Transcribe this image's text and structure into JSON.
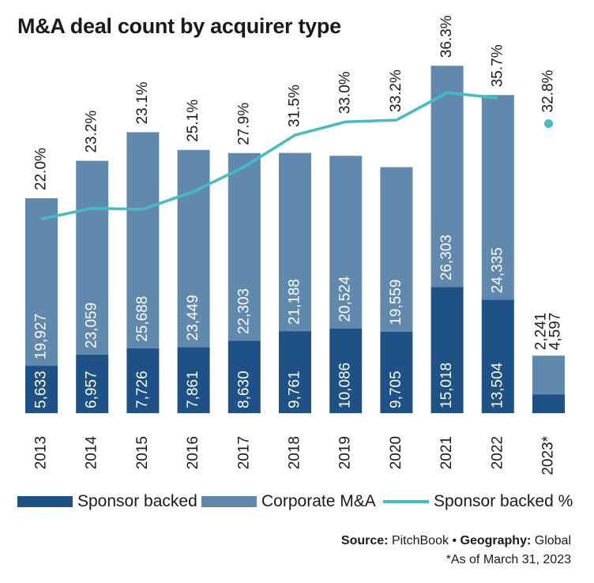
{
  "title": "M&A deal count by acquirer type",
  "chart_data": {
    "type": "bar",
    "stacked": true,
    "categories": [
      "2013",
      "2014",
      "2015",
      "2016",
      "2017",
      "2018",
      "2019",
      "2020",
      "2021",
      "2022",
      "2023*"
    ],
    "series": [
      {
        "name": "Sponsor backed",
        "color": "#1e5186",
        "values": [
          5633,
          6957,
          7726,
          7861,
          8630,
          9761,
          10086,
          9705,
          15018,
          13504,
          2241
        ],
        "labels": [
          "5,633",
          "6,957",
          "7,726",
          "7,861",
          "8,630",
          "9,761",
          "10,086",
          "9,705",
          "15,018",
          "13,504",
          "2,241"
        ]
      },
      {
        "name": "Corporate M&A",
        "color": "#6189ae",
        "values": [
          19927,
          23059,
          25688,
          23449,
          22303,
          21188,
          20524,
          19559,
          26303,
          24335,
          4597
        ],
        "labels": [
          "19,927",
          "23,059",
          "25,688",
          "23,449",
          "22,303",
          "21,188",
          "20,524",
          "19,559",
          "26,303",
          "24,335",
          "4,597"
        ]
      },
      {
        "name": "Sponsor backed %",
        "type": "line",
        "color": "#43bcc4",
        "values": [
          22.0,
          23.2,
          23.1,
          25.1,
          27.9,
          31.5,
          33.0,
          33.2,
          36.3,
          35.7,
          32.8
        ],
        "labels": [
          "22.0%",
          "23.2%",
          "23.1%",
          "25.1%",
          "27.9%",
          "31.5%",
          "33.0%",
          "33.2%",
          "36.3%",
          "35.7%",
          "32.8%"
        ]
      }
    ],
    "ylim_count": [
      0,
      42000
    ],
    "ylim_pct": [
      0,
      40
    ],
    "grid": false,
    "legend": "bottom"
  },
  "legend": {
    "sponsor": "Sponsor backed",
    "corporate": "Corporate M&A",
    "pct": "Sponsor backed %"
  },
  "source": {
    "source_label": "Source:",
    "source_value": "PitchBook",
    "bullet": "•",
    "geo_label": "Geography:",
    "geo_value": "Global",
    "footnote": "*As of March 31, 2023"
  },
  "colors": {
    "sponsor": "#1e5186",
    "corporate": "#6189ae",
    "line": "#43bcc4"
  }
}
